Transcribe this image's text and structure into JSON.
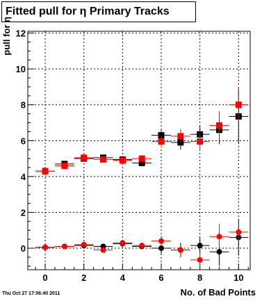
{
  "chart_data": {
    "type": "scatter",
    "title": "Fitted pull for  η Primary Tracks",
    "xlabel": "No. of Bad Points",
    "ylabel": "pull for η",
    "xlim": [
      -0.9,
      10.6
    ],
    "ylim": [
      -1.2,
      12.1
    ],
    "xticks": [
      0,
      2,
      4,
      6,
      8,
      10
    ],
    "yticks": [
      0,
      2,
      4,
      6,
      8,
      10,
      12
    ],
    "grid": true,
    "series": [
      {
        "marker": "square",
        "color": "#000000",
        "points": [
          {
            "x": 0,
            "y": 4.3,
            "err": 0.07
          },
          {
            "x": 1,
            "y": 4.7,
            "err": 0.08
          },
          {
            "x": 2,
            "y": 5.0,
            "err": 0.1
          },
          {
            "x": 3,
            "y": 5.05,
            "err": 0.12
          },
          {
            "x": 4,
            "y": 4.95,
            "err": 0.12
          },
          {
            "x": 5,
            "y": 4.75,
            "err": 0.15
          },
          {
            "x": 6,
            "y": 6.3,
            "err": 0.3
          },
          {
            "x": 7,
            "y": 5.9,
            "err": 0.4
          },
          {
            "x": 8,
            "y": 6.35,
            "err": 0.45
          },
          {
            "x": 9,
            "y": 6.6,
            "err": 0.8
          },
          {
            "x": 10,
            "y": 7.35,
            "err": 1.5
          }
        ]
      },
      {
        "marker": "square",
        "color": "#ff0000",
        "points": [
          {
            "x": 0,
            "y": 4.3,
            "err": 0.07
          },
          {
            "x": 1,
            "y": 4.6,
            "err": 0.08
          },
          {
            "x": 2,
            "y": 5.05,
            "err": 0.1
          },
          {
            "x": 3,
            "y": 4.95,
            "err": 0.12
          },
          {
            "x": 4,
            "y": 4.9,
            "err": 0.12
          },
          {
            "x": 5,
            "y": 5.0,
            "err": 0.15
          },
          {
            "x": 6,
            "y": 5.95,
            "err": 0.3
          },
          {
            "x": 7,
            "y": 6.25,
            "err": 0.4
          },
          {
            "x": 8,
            "y": 5.95,
            "err": 0.45
          },
          {
            "x": 9,
            "y": 6.85,
            "err": 0.8
          },
          {
            "x": 10,
            "y": 8.0,
            "err": 1.0
          }
        ]
      },
      {
        "marker": "circle",
        "color": "#000000",
        "points": [
          {
            "x": 0,
            "y": 0.05,
            "err": 0.07
          },
          {
            "x": 1,
            "y": 0.1,
            "err": 0.08
          },
          {
            "x": 2,
            "y": 0.15,
            "err": 0.1
          },
          {
            "x": 3,
            "y": 0.1,
            "err": 0.12
          },
          {
            "x": 4,
            "y": 0.25,
            "err": 0.12
          },
          {
            "x": 5,
            "y": 0.1,
            "err": 0.15
          },
          {
            "x": 6,
            "y": 0.0,
            "err": 0.3
          },
          {
            "x": 7,
            "y": -0.1,
            "err": 0.4
          },
          {
            "x": 8,
            "y": 0.15,
            "err": 0.45
          },
          {
            "x": 9,
            "y": -0.2,
            "err": 0.8
          },
          {
            "x": 10,
            "y": 0.6,
            "err": 1.0
          }
        ]
      },
      {
        "marker": "circle",
        "color": "#ff0000",
        "points": [
          {
            "x": 0,
            "y": 0.05,
            "err": 0.07
          },
          {
            "x": 1,
            "y": 0.1,
            "err": 0.08
          },
          {
            "x": 2,
            "y": 0.2,
            "err": 0.1
          },
          {
            "x": 3,
            "y": -0.1,
            "err": 0.12
          },
          {
            "x": 4,
            "y": 0.3,
            "err": 0.12
          },
          {
            "x": 5,
            "y": 0.15,
            "err": 0.15
          },
          {
            "x": 6,
            "y": 0.4,
            "err": 0.3
          },
          {
            "x": 7,
            "y": -0.1,
            "err": 0.4
          },
          {
            "x": 8,
            "y": -0.65,
            "err": 0.45
          },
          {
            "x": 9,
            "y": 0.65,
            "err": 0.7
          },
          {
            "x": 10,
            "y": 0.9,
            "err": 0.55
          }
        ]
      }
    ]
  },
  "footer": {
    "timestamp": "Thu Oct 27 17:06:40 2011"
  }
}
